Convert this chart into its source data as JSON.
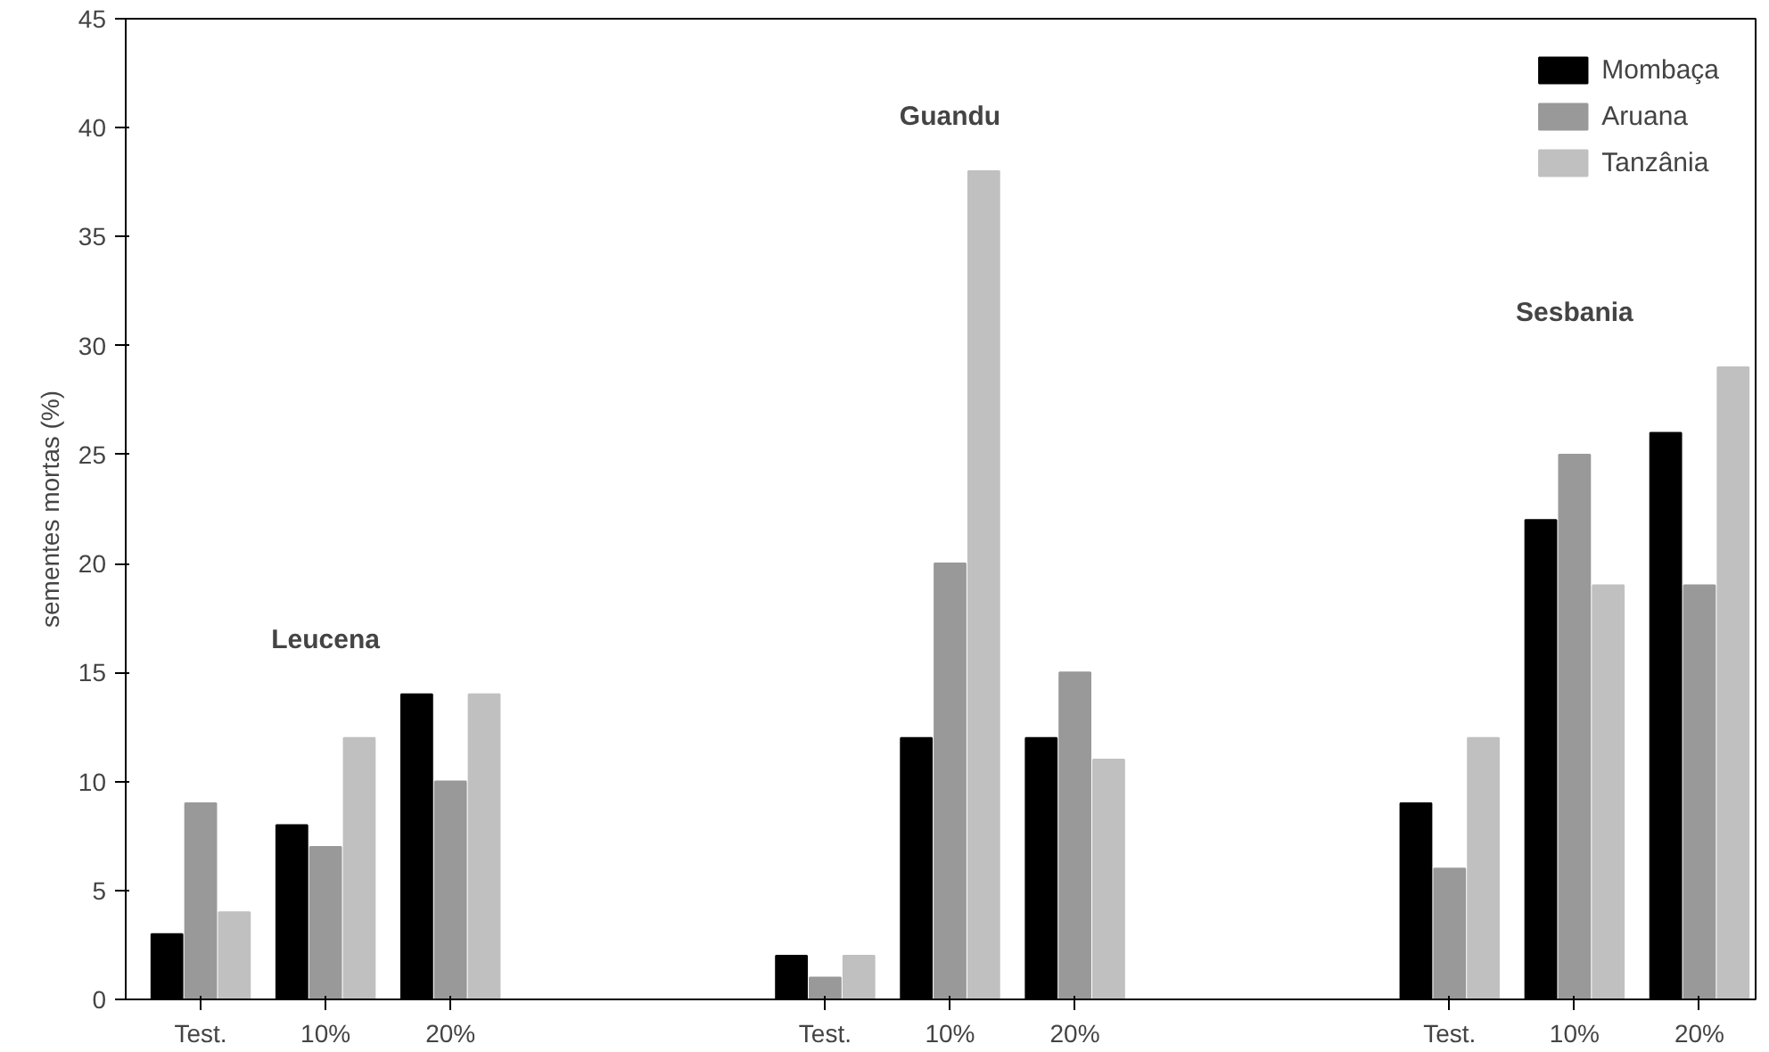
{
  "chart_data": {
    "type": "bar",
    "ylabel": "sementes mortas (%)",
    "categories": [
      "Test.",
      "10%",
      "20%",
      null,
      null,
      "Test.",
      "10%",
      "20%",
      null,
      null,
      "Test.",
      "10%",
      "20%"
    ],
    "series": [
      {
        "name": "Mombaça",
        "color": "#000000",
        "values": [
          3,
          8,
          14,
          null,
          null,
          2,
          12,
          12,
          null,
          null,
          9,
          22,
          26
        ]
      },
      {
        "name": "Aruana",
        "color": "#999999",
        "values": [
          9,
          7,
          10,
          null,
          null,
          1,
          20,
          15,
          null,
          null,
          6,
          25,
          19
        ]
      },
      {
        "name": "Tanzânia",
        "color": "#c0c0c0",
        "values": [
          4,
          12,
          14,
          null,
          null,
          2,
          38,
          11,
          null,
          null,
          12,
          19,
          29
        ]
      }
    ],
    "annotations": [
      "Leucena",
      "Guandu",
      "Sesbania"
    ],
    "ylim": [
      0,
      45
    ],
    "yticks": [
      0,
      5,
      10,
      15,
      20,
      25,
      30,
      35,
      40,
      45
    ],
    "grid": false,
    "legend": "top right"
  }
}
